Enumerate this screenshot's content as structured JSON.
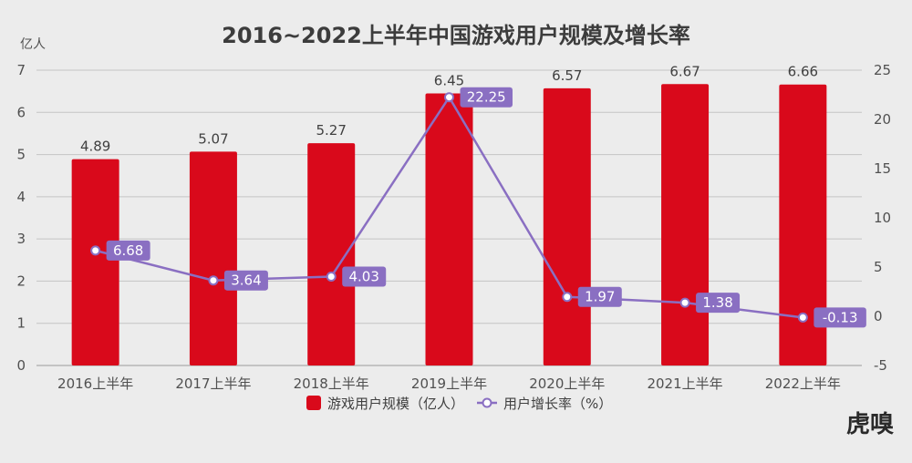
{
  "chart_data": {
    "type": "bar",
    "title": "2016~2022上半年中国游戏用户规模及增长率",
    "y_left_unit": "亿人",
    "categories": [
      "2016上半年",
      "2017上半年",
      "2018上半年",
      "2019上半年",
      "2020上半年",
      "2021上半年",
      "2022上半年"
    ],
    "y_left_ticks": [
      "0",
      "1",
      "2",
      "3",
      "4",
      "5",
      "6",
      "7"
    ],
    "y_right_ticks": [
      "-5",
      "0",
      "5",
      "10",
      "15",
      "20",
      "25"
    ],
    "ylim_left": [
      0,
      7
    ],
    "ylim_right": [
      -5,
      25
    ],
    "grid": true,
    "legend_position": "bottom",
    "series": [
      {
        "name": "游戏用户规模（亿人）",
        "type": "bar",
        "axis": "left",
        "color": "#d9091b",
        "values": [
          4.89,
          5.07,
          5.27,
          6.45,
          6.57,
          6.67,
          6.66
        ],
        "labels": [
          "4.89",
          "5.07",
          "5.27",
          "6.45",
          "6.57",
          "6.67",
          "6.66"
        ]
      },
      {
        "name": "用户增长率（%）",
        "type": "line",
        "axis": "right",
        "color": "#8a6fc2",
        "values": [
          6.68,
          3.64,
          4.03,
          22.25,
          1.97,
          1.38,
          -0.13
        ],
        "labels": [
          "6.68",
          "3.64",
          "4.03",
          "22.25",
          "1.97",
          "1.38",
          "-0.13"
        ]
      }
    ]
  },
  "watermark": "虎嗅"
}
